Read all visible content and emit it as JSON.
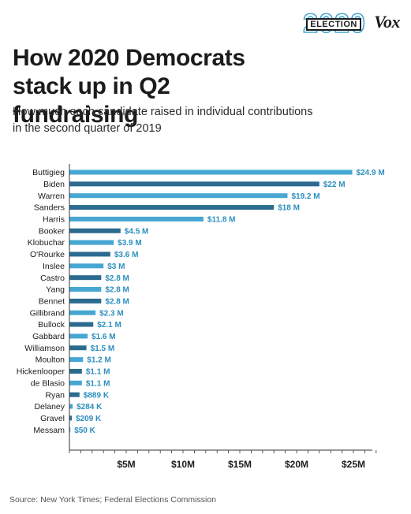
{
  "logo": {
    "year": "2020",
    "word": "ELECTION",
    "brand": "Vox"
  },
  "title": "How 2020 Democrats stack up in Q2 fundraising",
  "subtitle": "How much each candidate raised in individual contributions in the second quarter of 2019",
  "source": "Source: New York Times; Federal Elections Commission",
  "colors": {
    "dark": "#2c6b8f",
    "light": "#46a7d2",
    "label": "#2d8fc0",
    "axis": "#333333",
    "tick_text": "#1b1b1b"
  },
  "chart_data": {
    "type": "bar",
    "orientation": "horizontal",
    "categories": [
      "Buttigieg",
      "Biden",
      "Warren",
      "Sanders",
      "Harris",
      "Booker",
      "Klobuchar",
      "O'Rourke",
      "Inslee",
      "Castro",
      "Yang",
      "Bennet",
      "Gillibrand",
      "Bullock",
      "Gabbard",
      "Williamson",
      "Moulton",
      "Hickenlooper",
      "de Blasio",
      "Ryan",
      "Delaney",
      "Gravel",
      "Messam"
    ],
    "values": [
      24.9,
      22,
      19.2,
      18,
      11.8,
      4.5,
      3.9,
      3.6,
      3,
      2.8,
      2.8,
      2.8,
      2.3,
      2.1,
      1.6,
      1.5,
      1.2,
      1.1,
      1.1,
      0.889,
      0.284,
      0.209,
      0.05
    ],
    "labels": [
      "$24.9 M",
      "$22 M",
      "$19.2 M",
      "$18 M",
      "$11.8 M",
      "$4.5 M",
      "$3.9 M",
      "$3.6 M",
      "$3 M",
      "$2.8 M",
      "$2.8 M",
      "$2.8 M",
      "$2.3 M",
      "$2.1 M",
      "$1.6 M",
      "$1.5 M",
      "$1.2 M",
      "$1.1 M",
      "$1.1 M",
      "$889 K",
      "$284 K",
      "$209 K",
      "$50 K"
    ],
    "xticks": [
      5,
      10,
      15,
      20,
      25
    ],
    "xtick_labels": [
      "$5M",
      "$10M",
      "$15M",
      "$20M",
      "$25M"
    ],
    "xlim": [
      0,
      27
    ],
    "grid": false,
    "bar_colors": "alternating light and dark blue"
  }
}
